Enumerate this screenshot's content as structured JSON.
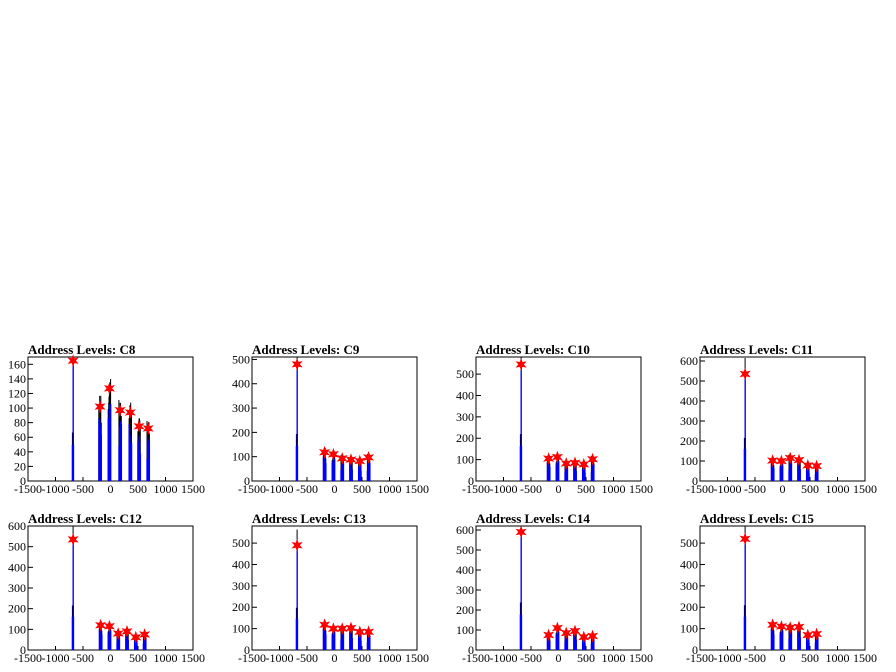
{
  "chart_data": [
    {
      "type": "histogram",
      "title": "Address Levels: C8",
      "xlim": [
        -1500,
        1500
      ],
      "ylim": [
        0,
        170
      ],
      "yticks": [
        0,
        20,
        40,
        60,
        80,
        100,
        120,
        140,
        160
      ],
      "xticks": [
        -1500,
        -1000,
        -500,
        0,
        500,
        1000,
        1500
      ],
      "peaks": [
        {
          "x": -680,
          "y": 165
        },
        {
          "x": -190,
          "y": 102
        },
        {
          "x": -20,
          "y": 127
        },
        {
          "x": 175,
          "y": 97
        },
        {
          "x": 360,
          "y": 94
        },
        {
          "x": 520,
          "y": 75
        },
        {
          "x": 685,
          "y": 72
        }
      ]
    },
    {
      "type": "histogram",
      "title": "Address Levels: C9",
      "xlim": [
        -1500,
        1500
      ],
      "ylim": [
        0,
        510
      ],
      "yticks": [
        0,
        100,
        200,
        300,
        400,
        500
      ],
      "xticks": [
        -1500,
        -1000,
        -500,
        0,
        500,
        1000,
        1500
      ],
      "peaks": [
        {
          "x": -680,
          "y": 480
        },
        {
          "x": -180,
          "y": 118
        },
        {
          "x": -20,
          "y": 110
        },
        {
          "x": 140,
          "y": 93
        },
        {
          "x": 300,
          "y": 88
        },
        {
          "x": 460,
          "y": 82
        },
        {
          "x": 620,
          "y": 97
        }
      ]
    },
    {
      "type": "histogram",
      "title": "Address Levels: C10",
      "xlim": [
        -1500,
        1500
      ],
      "ylim": [
        0,
        580
      ],
      "yticks": [
        0,
        100,
        200,
        300,
        400,
        500
      ],
      "xticks": [
        -1500,
        -1000,
        -500,
        0,
        500,
        1000,
        1500
      ],
      "peaks": [
        {
          "x": -680,
          "y": 545
        },
        {
          "x": -180,
          "y": 105
        },
        {
          "x": -20,
          "y": 112
        },
        {
          "x": 140,
          "y": 82
        },
        {
          "x": 300,
          "y": 85
        },
        {
          "x": 460,
          "y": 78
        },
        {
          "x": 620,
          "y": 102
        }
      ]
    },
    {
      "type": "histogram",
      "title": "Address Levels: C11",
      "xlim": [
        -1500,
        1500
      ],
      "ylim": [
        0,
        620
      ],
      "yticks": [
        0,
        100,
        200,
        300,
        400,
        500,
        600
      ],
      "xticks": [
        -1500,
        -1000,
        -500,
        0,
        500,
        1000,
        1500
      ],
      "peaks": [
        {
          "x": -680,
          "y": 535
        },
        {
          "x": -180,
          "y": 102
        },
        {
          "x": -20,
          "y": 100
        },
        {
          "x": 140,
          "y": 115
        },
        {
          "x": 300,
          "y": 105
        },
        {
          "x": 460,
          "y": 78
        },
        {
          "x": 620,
          "y": 75
        }
      ]
    },
    {
      "type": "histogram",
      "title": "Address Levels: C12",
      "xlim": [
        -1500,
        1500
      ],
      "ylim": [
        0,
        600
      ],
      "yticks": [
        0,
        100,
        200,
        300,
        400,
        500,
        600
      ],
      "xticks": [
        -1500,
        -1000,
        -500,
        0,
        500,
        1000,
        1500
      ],
      "peaks": [
        {
          "x": -680,
          "y": 535
        },
        {
          "x": -180,
          "y": 120
        },
        {
          "x": -20,
          "y": 115
        },
        {
          "x": 140,
          "y": 80
        },
        {
          "x": 300,
          "y": 90
        },
        {
          "x": 460,
          "y": 62
        },
        {
          "x": 620,
          "y": 75
        }
      ]
    },
    {
      "type": "histogram",
      "title": "Address Levels: C13",
      "xlim": [
        -1500,
        1500
      ],
      "ylim": [
        0,
        580
      ],
      "yticks": [
        0,
        100,
        200,
        300,
        400,
        500
      ],
      "xticks": [
        -1500,
        -1000,
        -500,
        0,
        500,
        1000,
        1500
      ],
      "peaks": [
        {
          "x": -680,
          "y": 490
        },
        {
          "x": -180,
          "y": 118
        },
        {
          "x": -20,
          "y": 100
        },
        {
          "x": 140,
          "y": 100
        },
        {
          "x": 300,
          "y": 103
        },
        {
          "x": 460,
          "y": 85
        },
        {
          "x": 620,
          "y": 85
        }
      ]
    },
    {
      "type": "histogram",
      "title": "Address Levels: C14",
      "xlim": [
        -1500,
        1500
      ],
      "ylim": [
        0,
        620
      ],
      "yticks": [
        0,
        100,
        200,
        300,
        400,
        500,
        600
      ],
      "xticks": [
        -1500,
        -1000,
        -500,
        0,
        500,
        1000,
        1500
      ],
      "peaks": [
        {
          "x": -680,
          "y": 590
        },
        {
          "x": -180,
          "y": 75
        },
        {
          "x": -20,
          "y": 110
        },
        {
          "x": 140,
          "y": 85
        },
        {
          "x": 300,
          "y": 95
        },
        {
          "x": 460,
          "y": 65
        },
        {
          "x": 620,
          "y": 70
        }
      ]
    },
    {
      "type": "histogram",
      "title": "Address Levels: C15",
      "xlim": [
        -1500,
        1500
      ],
      "ylim": [
        0,
        580
      ],
      "yticks": [
        0,
        100,
        200,
        300,
        400,
        500
      ],
      "xticks": [
        -1500,
        -1000,
        -500,
        0,
        500,
        1000,
        1500
      ],
      "peaks": [
        {
          "x": -680,
          "y": 520
        },
        {
          "x": -180,
          "y": 118
        },
        {
          "x": -20,
          "y": 110
        },
        {
          "x": 140,
          "y": 105
        },
        {
          "x": 300,
          "y": 108
        },
        {
          "x": 460,
          "y": 70
        },
        {
          "x": 620,
          "y": 75
        }
      ]
    }
  ],
  "colors": {
    "peak_marker": "#ff0000",
    "histogram_line": "#0000ff",
    "raw_line": "#000000"
  }
}
